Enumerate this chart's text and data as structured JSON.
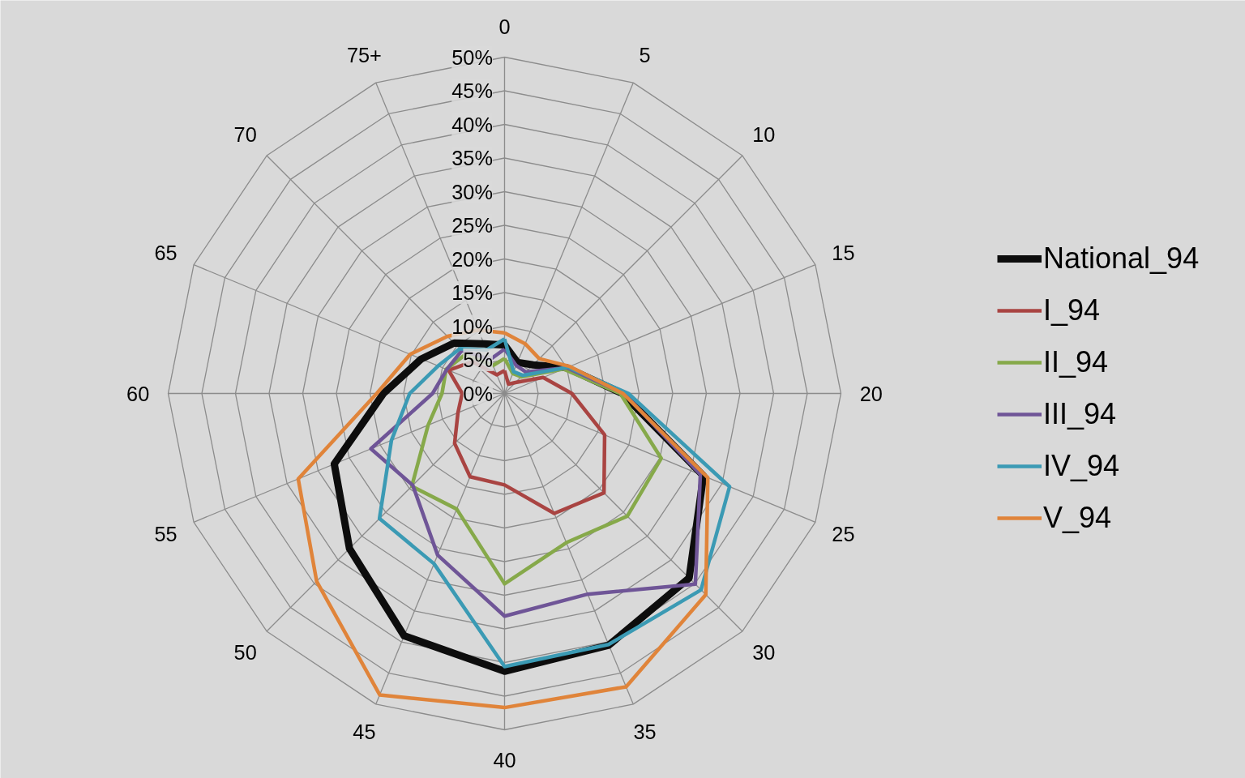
{
  "chart_data": {
    "type": "radar",
    "categories": [
      "0",
      "5",
      "10",
      "15",
      "20",
      "25",
      "30",
      "35",
      "40",
      "45",
      "50",
      "55",
      "60",
      "65",
      "70",
      "75+"
    ],
    "ylim": [
      0,
      50
    ],
    "yticks": [
      {
        "value": 0,
        "label": "0%"
      },
      {
        "value": 5,
        "label": "5%"
      },
      {
        "value": 10,
        "label": "10%"
      },
      {
        "value": 15,
        "label": "15%"
      },
      {
        "value": 20,
        "label": "20%"
      },
      {
        "value": 25,
        "label": "25%"
      },
      {
        "value": 30,
        "label": "30%"
      },
      {
        "value": 35,
        "label": "35%"
      },
      {
        "value": 40,
        "label": "40%"
      },
      {
        "value": 45,
        "label": "45%"
      },
      {
        "value": 50,
        "label": "50%"
      }
    ],
    "grid": true,
    "legend": "right",
    "marker": "none",
    "line_style": "solid",
    "series": [
      {
        "name": "National_94",
        "color": "#0d0d0d",
        "values": [
          7.2,
          5,
          6,
          10,
          17.5,
          32,
          38.8,
          40.5,
          41.3,
          39,
          32.6,
          27.4,
          18,
          13.4,
          10.6,
          8
        ]
      },
      {
        "name": "I_94",
        "color": "#a94442",
        "values": [
          3.4,
          1.5,
          2.3,
          6.2,
          10,
          16.1,
          20.9,
          19.3,
          13.6,
          13.4,
          10.5,
          7.5,
          6.3,
          9,
          6.7,
          3
        ]
      },
      {
        "name": "II_94",
        "color": "#86a94a",
        "values": [
          5.2,
          3.2,
          3.5,
          9.5,
          17.2,
          25.2,
          25.8,
          24,
          28.3,
          18.6,
          19.5,
          12.3,
          9.3,
          9.4,
          8.2,
          4.5
        ]
      },
      {
        "name": "III_94",
        "color": "#6f5597",
        "values": [
          6.6,
          4.5,
          4.5,
          10,
          17.8,
          31.5,
          40.1,
          32.3,
          33.1,
          26,
          19.3,
          21.5,
          10.7,
          9.3,
          9,
          5.5
        ]
      },
      {
        "name": "IV_94",
        "color": "#3b9ab4",
        "values": [
          8.1,
          3.5,
          3.8,
          10.2,
          18.4,
          36.2,
          41.3,
          40.4,
          40.6,
          27.4,
          26.3,
          18.2,
          14.1,
          10.7,
          9.4,
          7
        ]
      },
      {
        "name": "V_94",
        "color": "#e0843a",
        "values": [
          9,
          8,
          7.3,
          10.5,
          17.6,
          32.7,
          42.3,
          47.2,
          46.7,
          48.5,
          39.5,
          33.2,
          19,
          15.2,
          12,
          10.2
        ]
      }
    ]
  }
}
